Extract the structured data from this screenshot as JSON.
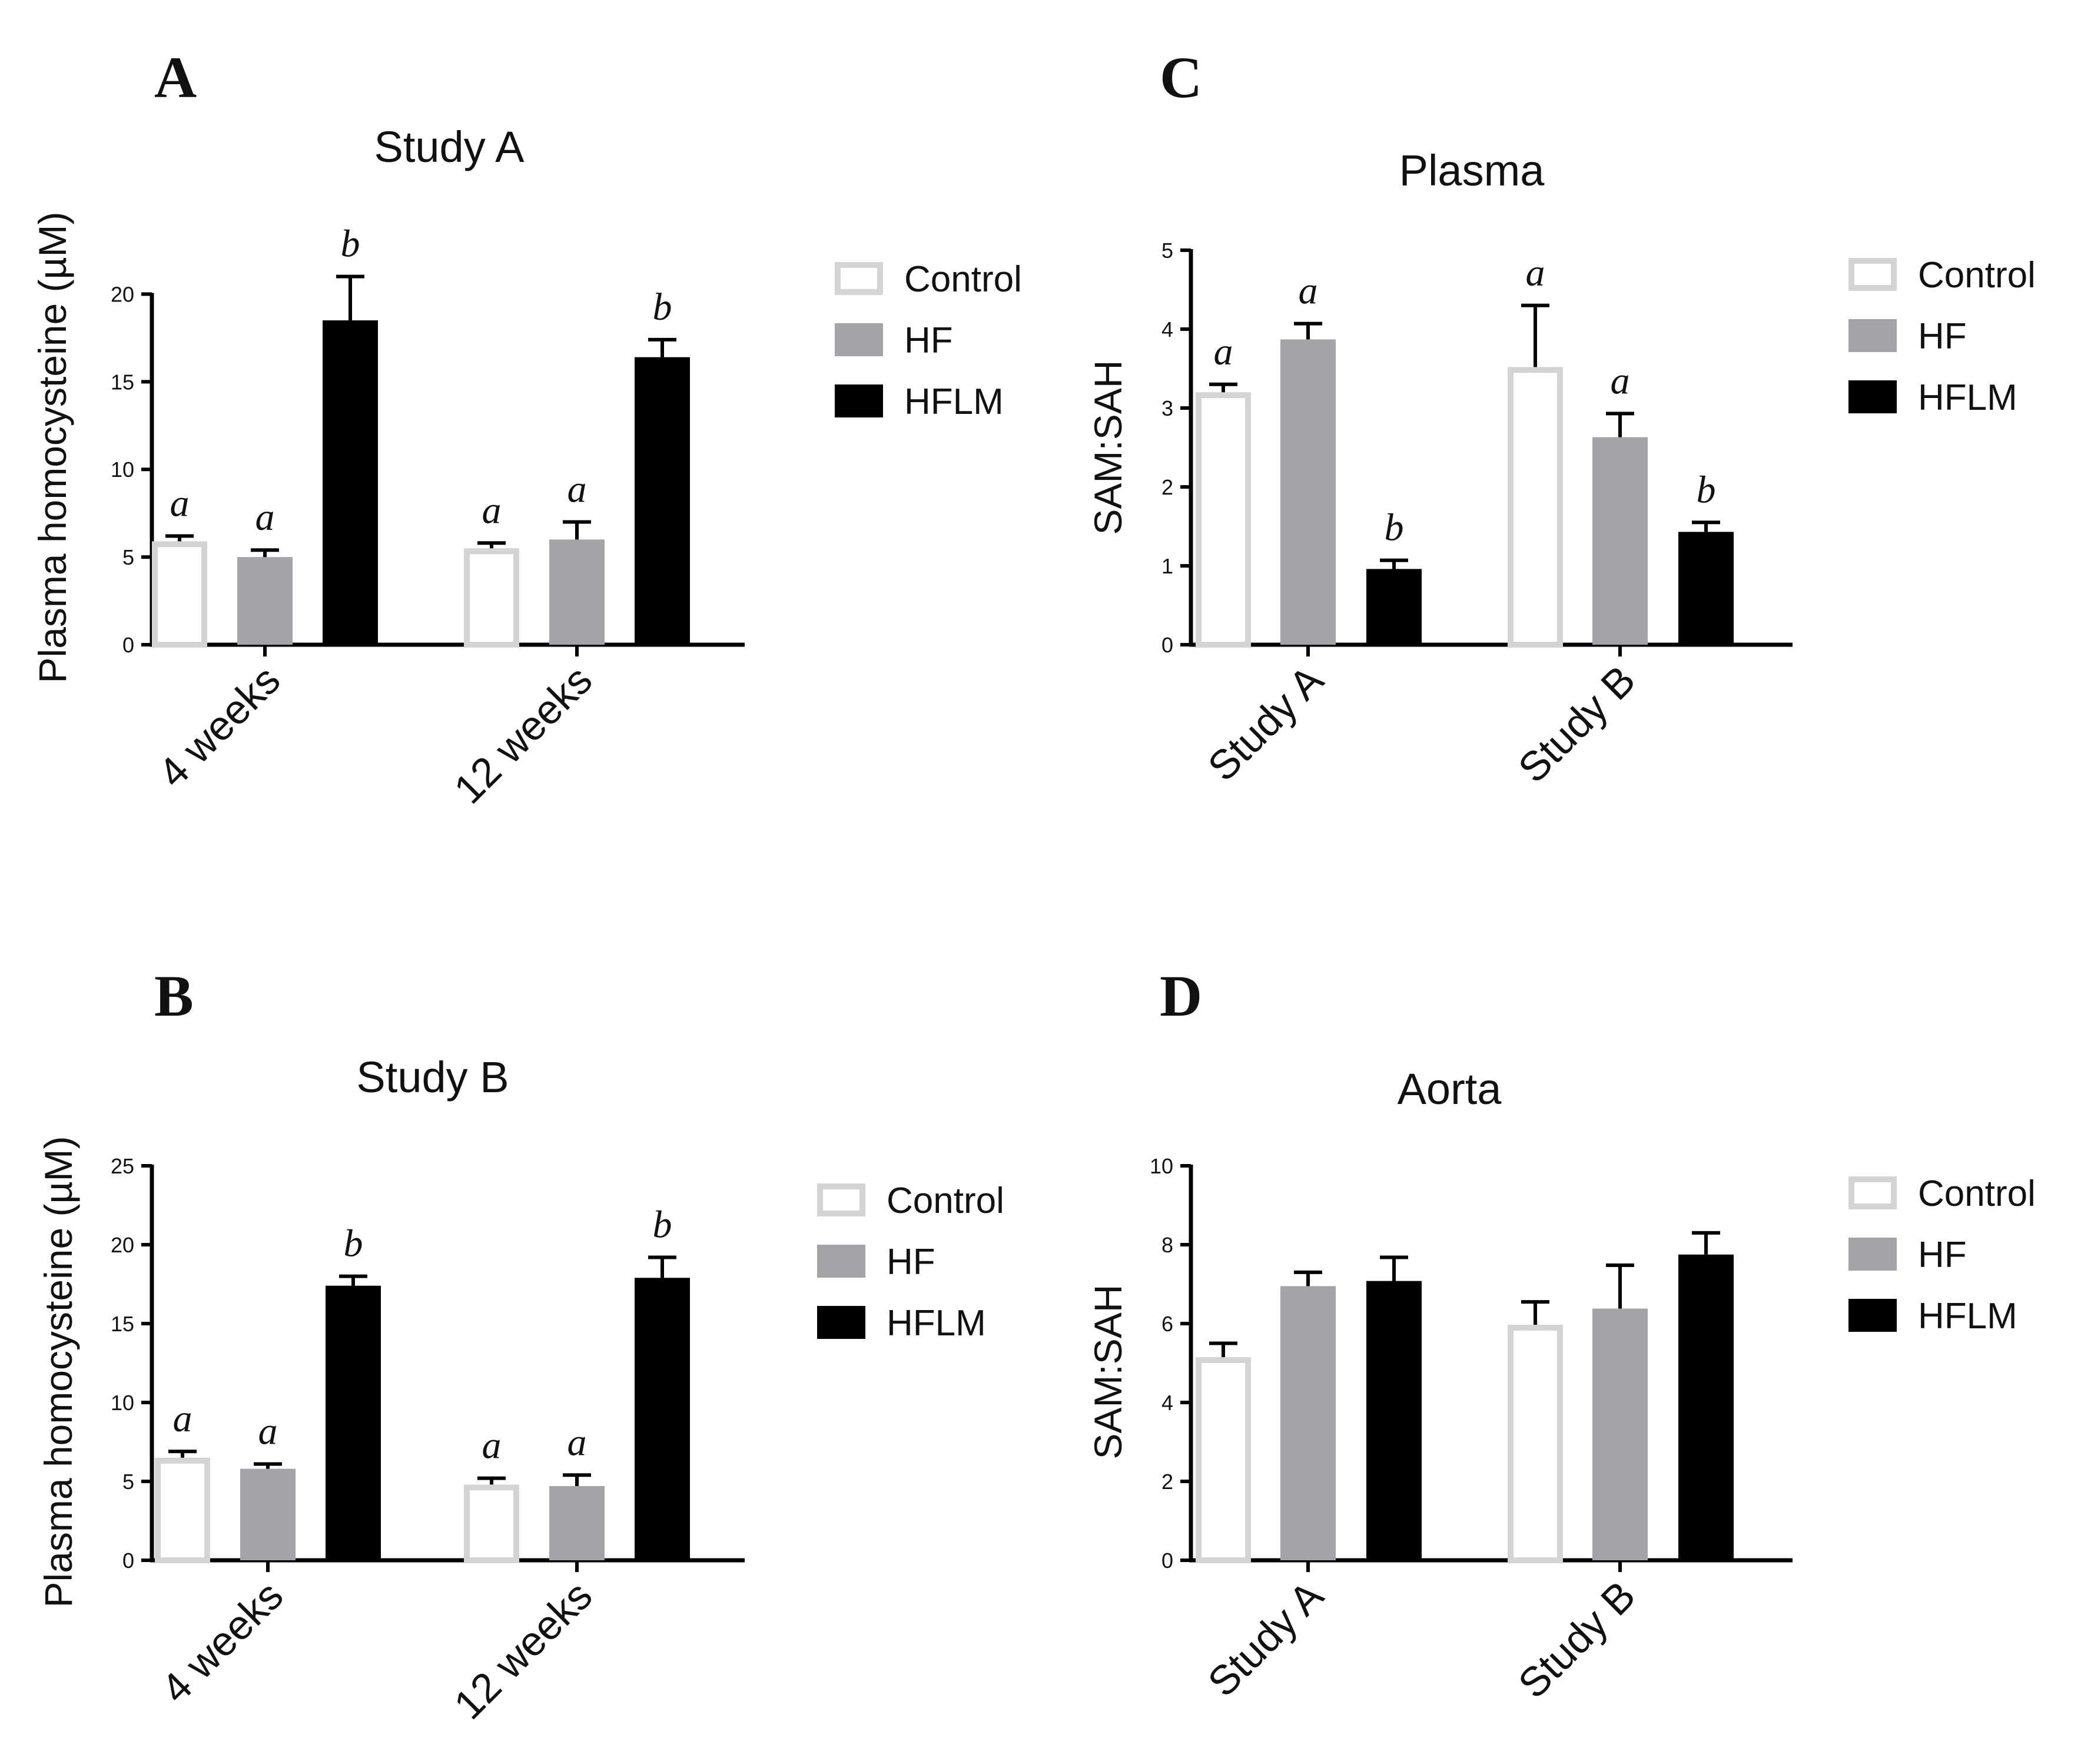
{
  "colors": {
    "Control": {
      "fill": "#ffffff",
      "stroke": "#d4d4d4"
    },
    "HF": {
      "fill": "#a3a3a8",
      "stroke": "#a3a3a8"
    },
    "HFLM": {
      "fill": "#000000",
      "stroke": "#000000"
    }
  },
  "chart_data": [
    {
      "id": "A",
      "letter": "A",
      "type": "bar",
      "title": "Study A",
      "ylabel": "Plasma homocysteine (µM)",
      "xlabel": "",
      "categories": [
        "4 weeks",
        "12 weeks"
      ],
      "ylim": [
        0,
        22.5
      ],
      "yticks": [
        0,
        5,
        10,
        15,
        20
      ],
      "legend_position": "right",
      "grid": false,
      "series": [
        {
          "name": "Control",
          "values": [
            5.9,
            5.5
          ],
          "errors": [
            0.3,
            0.3
          ],
          "sig": [
            "a",
            "a"
          ]
        },
        {
          "name": "HF",
          "values": [
            5.0,
            6.0
          ],
          "errors": [
            0.4,
            1.0
          ],
          "sig": [
            "a",
            "a"
          ]
        },
        {
          "name": "HFLM",
          "values": [
            18.5,
            16.4
          ],
          "errors": [
            2.5,
            1.0
          ],
          "sig": [
            "b",
            "b"
          ]
        }
      ]
    },
    {
      "id": "B",
      "letter": "B",
      "type": "bar",
      "title": "Study B",
      "ylabel": "Plasma homocysteine (µM)",
      "xlabel": "",
      "categories": [
        "4 weeks",
        "12 weeks"
      ],
      "ylim": [
        0,
        25
      ],
      "yticks": [
        0,
        5,
        10,
        15,
        20,
        25
      ],
      "legend_position": "right",
      "grid": false,
      "series": [
        {
          "name": "Control",
          "values": [
            6.5,
            4.8
          ],
          "errors": [
            0.4,
            0.4
          ],
          "sig": [
            "a",
            "a"
          ]
        },
        {
          "name": "HF",
          "values": [
            5.8,
            4.7
          ],
          "errors": [
            0.3,
            0.7
          ],
          "sig": [
            "a",
            "a"
          ]
        },
        {
          "name": "HFLM",
          "values": [
            17.4,
            17.9
          ],
          "errors": [
            0.6,
            1.3
          ],
          "sig": [
            "b",
            "b"
          ]
        }
      ]
    },
    {
      "id": "C",
      "letter": "C",
      "type": "bar",
      "title": "Plasma",
      "ylabel": "SAM:SAH",
      "xlabel": "",
      "categories": [
        "Study A",
        "Study B"
      ],
      "ylim": [
        0,
        5
      ],
      "yticks": [
        0,
        1,
        2,
        3,
        4,
        5
      ],
      "legend_position": "right",
      "grid": false,
      "series": [
        {
          "name": "Control",
          "values": [
            3.2,
            3.52
          ],
          "errors": [
            0.1,
            0.78
          ],
          "sig": [
            "a",
            "a"
          ]
        },
        {
          "name": "HF",
          "values": [
            3.87,
            2.63
          ],
          "errors": [
            0.2,
            0.3
          ],
          "sig": [
            "a",
            "a"
          ]
        },
        {
          "name": "HFLM",
          "values": [
            0.96,
            1.43
          ],
          "errors": [
            0.11,
            0.12
          ],
          "sig": [
            "b",
            "b"
          ]
        }
      ]
    },
    {
      "id": "D",
      "letter": "D",
      "type": "bar",
      "title": "Aorta",
      "ylabel": "SAM:SAH",
      "xlabel": "",
      "categories": [
        "Study A",
        "Study B"
      ],
      "ylim": [
        0,
        10
      ],
      "yticks": [
        0,
        2,
        4,
        6,
        8,
        10
      ],
      "legend_position": "right",
      "grid": false,
      "series": [
        {
          "name": "Control",
          "values": [
            5.15,
            5.97
          ],
          "errors": [
            0.35,
            0.58
          ],
          "sig": [
            "",
            ""
          ]
        },
        {
          "name": "HF",
          "values": [
            6.95,
            6.38
          ],
          "errors": [
            0.35,
            1.1
          ],
          "sig": [
            "",
            ""
          ]
        },
        {
          "name": "HFLM",
          "values": [
            7.08,
            7.75
          ],
          "errors": [
            0.6,
            0.55
          ],
          "sig": [
            "",
            ""
          ]
        }
      ]
    }
  ]
}
